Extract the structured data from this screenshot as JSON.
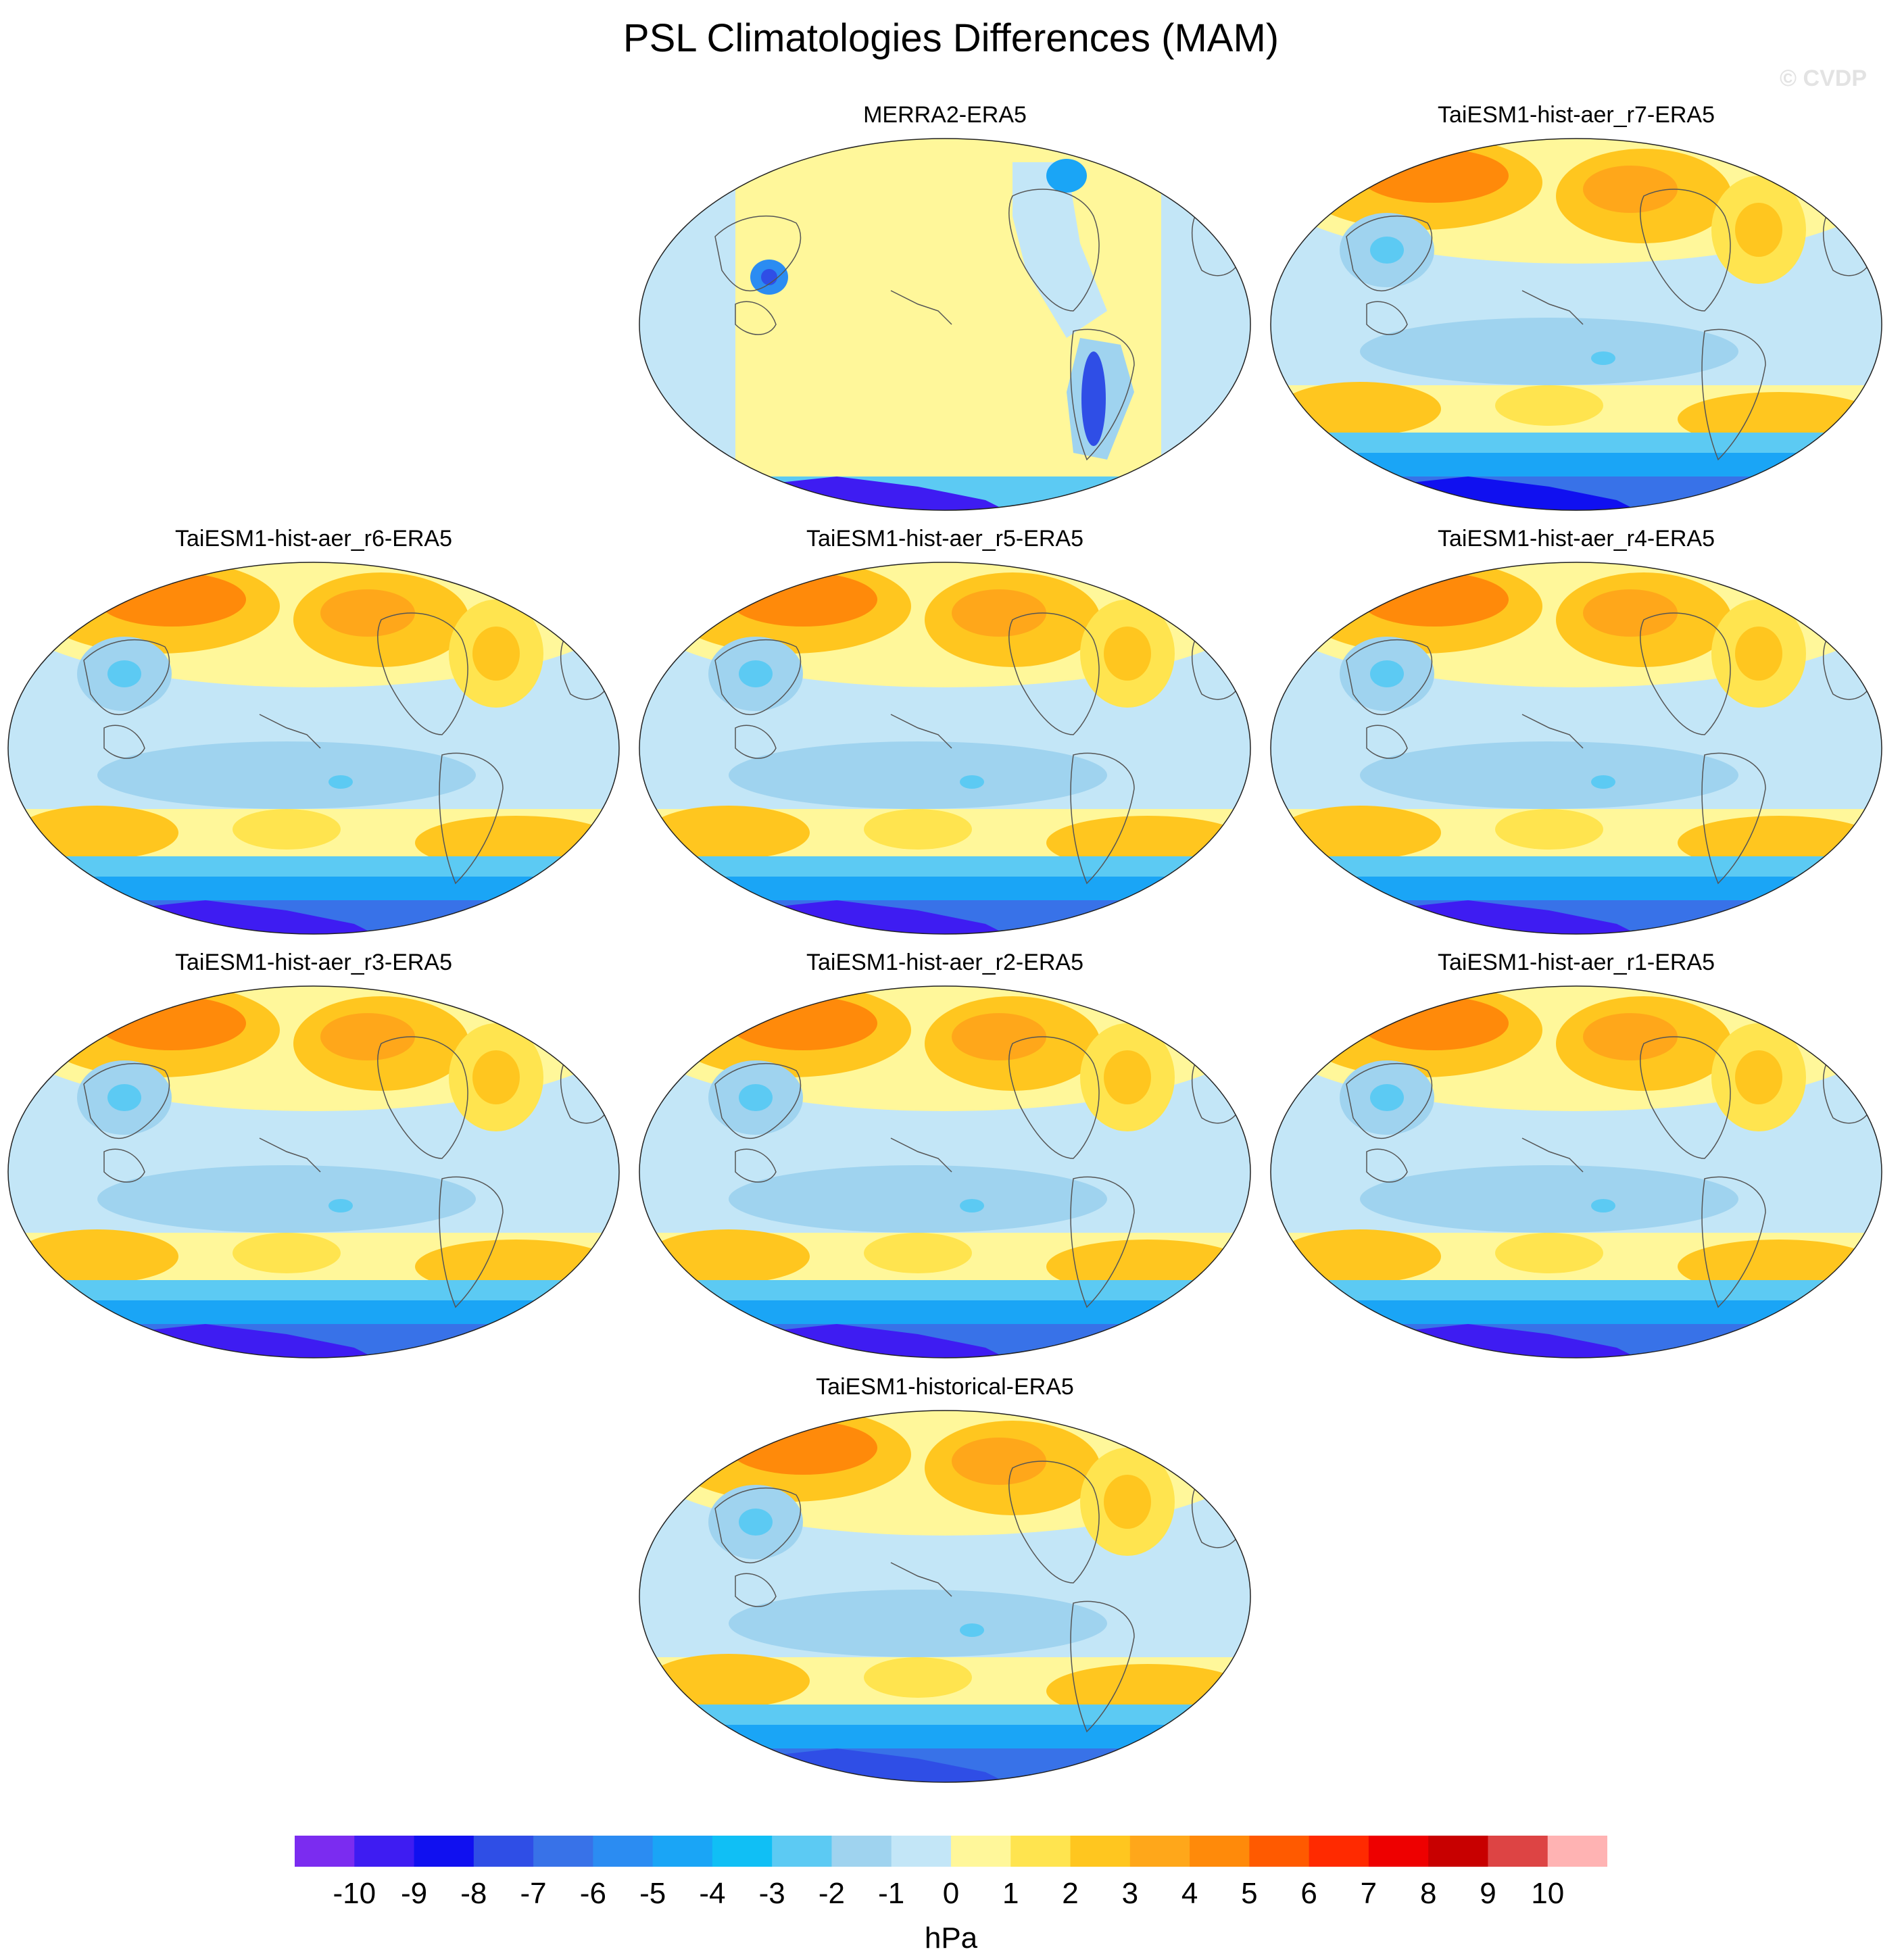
{
  "chart_data": {
    "type": "heatmap",
    "title": "PSL Climatologies Differences (MAM)",
    "watermark": "© CVDP",
    "panels": [
      {
        "id": "merra2",
        "title": "MERRA2-ERA5",
        "field": {
          "n_hemisphere_max": 0,
          "tropics": 0,
          "southern_ocean_ridge": 0,
          "antarctica": -10,
          "high_terrain_min": -8
        }
      },
      {
        "id": "r7",
        "title": "TaiESM1-hist-aer_r7-ERA5",
        "field": {
          "n_hemisphere_max": 4,
          "tropics": -1,
          "southern_ocean_ridge": 2,
          "antarctica": -9,
          "high_terrain_min": -3
        }
      },
      {
        "id": "r6",
        "title": "TaiESM1-hist-aer_r6-ERA5",
        "field": {
          "n_hemisphere_max": 4,
          "tropics": -1,
          "southern_ocean_ridge": 2,
          "antarctica": -10,
          "high_terrain_min": -3
        }
      },
      {
        "id": "r5",
        "title": "TaiESM1-hist-aer_r5-ERA5",
        "field": {
          "n_hemisphere_max": 4,
          "tropics": -1,
          "southern_ocean_ridge": 2,
          "antarctica": -10,
          "high_terrain_min": -3
        }
      },
      {
        "id": "r4",
        "title": "TaiESM1-hist-aer_r4-ERA5",
        "field": {
          "n_hemisphere_max": 4,
          "tropics": -1,
          "southern_ocean_ridge": 2,
          "antarctica": -10,
          "high_terrain_min": -3
        }
      },
      {
        "id": "r3",
        "title": "TaiESM1-hist-aer_r3-ERA5",
        "field": {
          "n_hemisphere_max": 4,
          "tropics": -1,
          "southern_ocean_ridge": 2,
          "antarctica": -10,
          "high_terrain_min": -3
        }
      },
      {
        "id": "r2",
        "title": "TaiESM1-hist-aer_r2-ERA5",
        "field": {
          "n_hemisphere_max": 4,
          "tropics": -1,
          "southern_ocean_ridge": 2,
          "antarctica": -10,
          "high_terrain_min": -3
        }
      },
      {
        "id": "r1",
        "title": "TaiESM1-hist-aer_r1-ERA5",
        "field": {
          "n_hemisphere_max": 4,
          "tropics": -1,
          "southern_ocean_ridge": 2,
          "antarctica": -10,
          "high_terrain_min": -3
        }
      },
      {
        "id": "historical",
        "title": "TaiESM1-historical-ERA5",
        "field": {
          "n_hemisphere_max": 4,
          "tropics": -1,
          "southern_ocean_ridge": 2,
          "antarctica": -8,
          "high_terrain_min": -3
        }
      }
    ],
    "colorbar": {
      "label": "hPa",
      "tick_labels": [
        "-10",
        "-9",
        "-8",
        "-7",
        "-6",
        "-5",
        "-4",
        "-3",
        "-2",
        "-1",
        "0",
        "1",
        "2",
        "3",
        "4",
        "5",
        "6",
        "7",
        "8",
        "9",
        "10"
      ],
      "colors": [
        "#7b2cf0",
        "#3e1cf2",
        "#1010f0",
        "#2f4ee6",
        "#3872e8",
        "#2b8cf2",
        "#1aa5f6",
        "#10bff5",
        "#5ccaf3",
        "#9fd3ef",
        "#c3e6f7",
        "#fff79a",
        "#ffe44f",
        "#ffc61f",
        "#ffa71a",
        "#ff8a0a",
        "#ff5a00",
        "#ff2a00",
        "#ee0000",
        "#c80000",
        "#dd4444",
        "#ffb3b3"
      ]
    }
  }
}
